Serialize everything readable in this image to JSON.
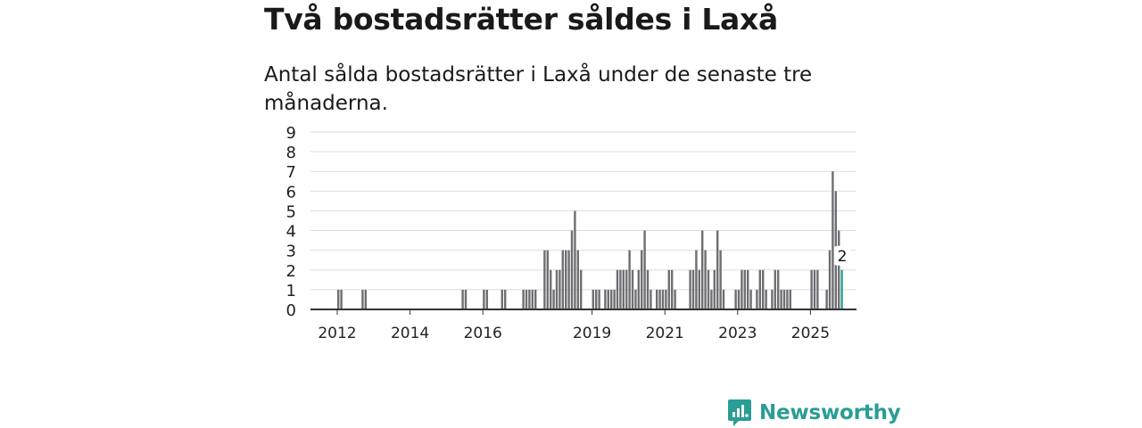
{
  "header": {
    "title": "Två bostadsrätter såldes i Laxå",
    "subtitle": "Antal sålda bostadsrätter i Laxå under de senaste tre månaderna."
  },
  "brand": {
    "name": "Newsworthy",
    "color": "#2a9d94"
  },
  "chart_data": {
    "type": "bar",
    "title": "Två bostadsrätter såldes i Laxå",
    "subtitle": "Antal sålda bostadsrätter i Laxå under de senaste tre månaderna.",
    "xlabel": "",
    "ylabel": "",
    "ylim": [
      0,
      9
    ],
    "yticks": [
      0,
      1,
      2,
      3,
      4,
      5,
      6,
      7,
      8,
      9
    ],
    "xticks": [
      "2012",
      "2014",
      "2016",
      "2019",
      "2021",
      "2023",
      "2025"
    ],
    "bar_color": "#6e6e73",
    "highlight_color": "#2aa198",
    "highlight_label": "2",
    "period": "monthly",
    "series": [
      {
        "name": "Antal sålda bostadsrätter",
        "values": [
          {
            "date": "2012-01",
            "value": 1
          },
          {
            "date": "2012-02",
            "value": 1
          },
          {
            "date": "2012-09",
            "value": 1
          },
          {
            "date": "2012-10",
            "value": 1
          },
          {
            "date": "2015-06",
            "value": 1
          },
          {
            "date": "2015-07",
            "value": 1
          },
          {
            "date": "2016-01",
            "value": 1
          },
          {
            "date": "2016-02",
            "value": 1
          },
          {
            "date": "2016-07",
            "value": 1
          },
          {
            "date": "2016-08",
            "value": 1
          },
          {
            "date": "2017-02",
            "value": 1
          },
          {
            "date": "2017-03",
            "value": 1
          },
          {
            "date": "2017-04",
            "value": 1
          },
          {
            "date": "2017-05",
            "value": 1
          },
          {
            "date": "2017-06",
            "value": 1
          },
          {
            "date": "2017-09",
            "value": 3
          },
          {
            "date": "2017-10",
            "value": 3
          },
          {
            "date": "2017-11",
            "value": 2
          },
          {
            "date": "2017-12",
            "value": 1
          },
          {
            "date": "2018-01",
            "value": 2
          },
          {
            "date": "2018-02",
            "value": 2
          },
          {
            "date": "2018-03",
            "value": 3
          },
          {
            "date": "2018-04",
            "value": 3
          },
          {
            "date": "2018-05",
            "value": 3
          },
          {
            "date": "2018-06",
            "value": 4
          },
          {
            "date": "2018-07",
            "value": 5
          },
          {
            "date": "2018-08",
            "value": 3
          },
          {
            "date": "2018-09",
            "value": 2
          },
          {
            "date": "2019-01",
            "value": 1
          },
          {
            "date": "2019-02",
            "value": 1
          },
          {
            "date": "2019-03",
            "value": 1
          },
          {
            "date": "2019-05",
            "value": 1
          },
          {
            "date": "2019-06",
            "value": 1
          },
          {
            "date": "2019-07",
            "value": 1
          },
          {
            "date": "2019-08",
            "value": 1
          },
          {
            "date": "2019-09",
            "value": 2
          },
          {
            "date": "2019-10",
            "value": 2
          },
          {
            "date": "2019-11",
            "value": 2
          },
          {
            "date": "2019-12",
            "value": 2
          },
          {
            "date": "2020-01",
            "value": 3
          },
          {
            "date": "2020-02",
            "value": 2
          },
          {
            "date": "2020-03",
            "value": 1
          },
          {
            "date": "2020-04",
            "value": 2
          },
          {
            "date": "2020-05",
            "value": 3
          },
          {
            "date": "2020-06",
            "value": 4
          },
          {
            "date": "2020-07",
            "value": 2
          },
          {
            "date": "2020-08",
            "value": 1
          },
          {
            "date": "2020-10",
            "value": 1
          },
          {
            "date": "2020-11",
            "value": 1
          },
          {
            "date": "2020-12",
            "value": 1
          },
          {
            "date": "2021-01",
            "value": 1
          },
          {
            "date": "2021-02",
            "value": 2
          },
          {
            "date": "2021-03",
            "value": 2
          },
          {
            "date": "2021-04",
            "value": 1
          },
          {
            "date": "2021-09",
            "value": 2
          },
          {
            "date": "2021-10",
            "value": 2
          },
          {
            "date": "2021-11",
            "value": 3
          },
          {
            "date": "2021-12",
            "value": 2
          },
          {
            "date": "2022-01",
            "value": 4
          },
          {
            "date": "2022-02",
            "value": 3
          },
          {
            "date": "2022-03",
            "value": 2
          },
          {
            "date": "2022-04",
            "value": 1
          },
          {
            "date": "2022-05",
            "value": 2
          },
          {
            "date": "2022-06",
            "value": 4
          },
          {
            "date": "2022-07",
            "value": 3
          },
          {
            "date": "2022-08",
            "value": 1
          },
          {
            "date": "2022-12",
            "value": 1
          },
          {
            "date": "2023-01",
            "value": 1
          },
          {
            "date": "2023-02",
            "value": 2
          },
          {
            "date": "2023-03",
            "value": 2
          },
          {
            "date": "2023-04",
            "value": 2
          },
          {
            "date": "2023-05",
            "value": 1
          },
          {
            "date": "2023-07",
            "value": 1
          },
          {
            "date": "2023-08",
            "value": 2
          },
          {
            "date": "2023-09",
            "value": 2
          },
          {
            "date": "2023-10",
            "value": 1
          },
          {
            "date": "2023-12",
            "value": 1
          },
          {
            "date": "2024-01",
            "value": 2
          },
          {
            "date": "2024-02",
            "value": 2
          },
          {
            "date": "2024-03",
            "value": 1
          },
          {
            "date": "2024-04",
            "value": 1
          },
          {
            "date": "2024-05",
            "value": 1
          },
          {
            "date": "2024-06",
            "value": 1
          },
          {
            "date": "2025-01",
            "value": 2
          },
          {
            "date": "2025-02",
            "value": 2
          },
          {
            "date": "2025-03",
            "value": 2
          },
          {
            "date": "2025-06",
            "value": 1
          },
          {
            "date": "2025-07",
            "value": 3
          },
          {
            "date": "2025-08",
            "value": 7
          },
          {
            "date": "2025-09",
            "value": 6
          },
          {
            "date": "2025-10",
            "value": 4
          },
          {
            "date": "2025-11",
            "value": 2
          }
        ]
      }
    ]
  }
}
